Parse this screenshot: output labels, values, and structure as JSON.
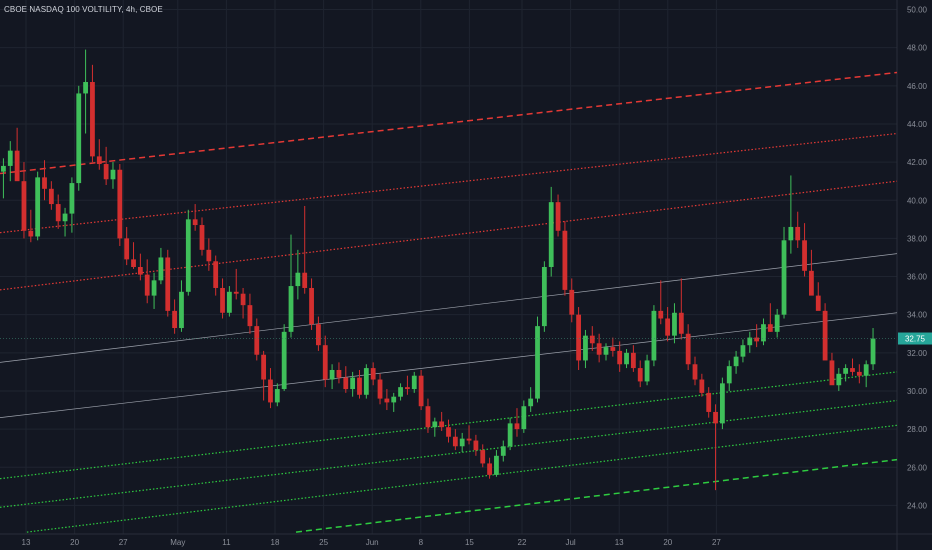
{
  "title": "CBOE NASDAQ 100 VOLTILITY, 4h, CBOE",
  "chart_data": {
    "type": "candlestick",
    "title": "CBOE NASDAQ 100 VOLTILITY, 4h, CBOE",
    "x_ticks": [
      "13",
      "20",
      "27",
      "May",
      "11",
      "18",
      "25",
      "Jun",
      "8",
      "15",
      "22",
      "Jul",
      "13",
      "20",
      "27"
    ],
    "y_ticks": [
      "24.00",
      "26.00",
      "28.00",
      "30.00",
      "32.00",
      "34.00",
      "36.00",
      "38.00",
      "40.00",
      "42.00",
      "44.00",
      "46.00",
      "48.00",
      "50.00"
    ],
    "ylim": [
      22.5,
      50.5
    ],
    "last_price": "32.75",
    "colors": {
      "up": "#26a69a",
      "green_candle": "#3fbf5a",
      "down": "#d32f2f",
      "red_line": "#e53935",
      "green_line": "#2ecc40",
      "gray_line": "#9ea3ad"
    },
    "candles_ohlc": [
      [
        41.5,
        42.2,
        40.1,
        41.8
      ],
      [
        41.8,
        43.1,
        41.0,
        42.6
      ],
      [
        42.6,
        43.8,
        41.5,
        41.0
      ],
      [
        41.0,
        42.0,
        38.0,
        38.4
      ],
      [
        38.4,
        39.5,
        37.8,
        38.1
      ],
      [
        38.1,
        41.5,
        37.9,
        41.2
      ],
      [
        41.2,
        42.1,
        40.0,
        40.6
      ],
      [
        40.6,
        41.0,
        39.5,
        39.8
      ],
      [
        39.8,
        40.3,
        38.5,
        38.9
      ],
      [
        38.9,
        39.6,
        38.1,
        39.3
      ],
      [
        39.3,
        41.2,
        38.3,
        40.9
      ],
      [
        40.9,
        46.0,
        40.5,
        45.6
      ],
      [
        45.6,
        47.9,
        43.5,
        46.2
      ],
      [
        46.2,
        47.1,
        42.0,
        42.3
      ],
      [
        42.3,
        43.2,
        41.6,
        41.9
      ],
      [
        41.9,
        42.8,
        40.8,
        41.1
      ],
      [
        41.1,
        42.0,
        40.6,
        41.6
      ],
      [
        41.6,
        41.9,
        37.6,
        38.0
      ],
      [
        38.0,
        38.6,
        36.6,
        36.9
      ],
      [
        36.9,
        37.8,
        36.4,
        36.5
      ],
      [
        36.5,
        37.2,
        35.8,
        36.1
      ],
      [
        36.1,
        36.9,
        34.6,
        35.0
      ],
      [
        35.0,
        36.2,
        34.3,
        35.8
      ],
      [
        35.8,
        37.5,
        35.6,
        37.0
      ],
      [
        37.0,
        37.4,
        33.9,
        34.2
      ],
      [
        34.2,
        34.8,
        33.0,
        33.3
      ],
      [
        33.3,
        35.8,
        33.1,
        35.2
      ],
      [
        35.2,
        39.5,
        35.0,
        39.0
      ],
      [
        39.0,
        39.8,
        38.4,
        38.7
      ],
      [
        38.7,
        39.1,
        37.1,
        37.4
      ],
      [
        37.4,
        38.0,
        36.3,
        36.8
      ],
      [
        36.8,
        37.1,
        35.0,
        35.4
      ],
      [
        35.4,
        35.9,
        33.8,
        34.1
      ],
      [
        34.1,
        35.5,
        33.9,
        35.2
      ],
      [
        35.2,
        36.4,
        34.8,
        35.1
      ],
      [
        35.1,
        35.4,
        33.8,
        34.5
      ],
      [
        34.5,
        35.1,
        33.0,
        33.4
      ],
      [
        33.4,
        33.8,
        31.6,
        31.9
      ],
      [
        31.9,
        32.1,
        29.5,
        30.6
      ],
      [
        30.6,
        31.2,
        29.1,
        29.4
      ],
      [
        29.4,
        30.4,
        29.2,
        30.1
      ],
      [
        30.1,
        33.5,
        30.0,
        33.1
      ],
      [
        33.1,
        38.2,
        32.8,
        35.5
      ],
      [
        35.5,
        37.4,
        34.8,
        36.2
      ],
      [
        36.2,
        39.7,
        35.1,
        35.4
      ],
      [
        35.4,
        35.9,
        33.2,
        33.5
      ],
      [
        33.5,
        33.9,
        32.1,
        32.4
      ],
      [
        32.4,
        32.9,
        30.2,
        30.6
      ],
      [
        30.6,
        31.4,
        30.1,
        31.1
      ],
      [
        31.1,
        31.5,
        30.4,
        30.7
      ],
      [
        30.7,
        31.3,
        29.9,
        30.1
      ],
      [
        30.1,
        31.0,
        29.7,
        30.7
      ],
      [
        30.7,
        31.1,
        29.6,
        29.8
      ],
      [
        29.8,
        31.4,
        29.6,
        31.2
      ],
      [
        31.2,
        31.5,
        30.3,
        30.6
      ],
      [
        30.6,
        30.9,
        29.3,
        29.6
      ],
      [
        29.6,
        30.1,
        29.0,
        29.4
      ],
      [
        29.4,
        29.9,
        28.9,
        29.7
      ],
      [
        29.7,
        30.4,
        29.5,
        30.2
      ],
      [
        30.2,
        30.8,
        29.8,
        30.1
      ],
      [
        30.1,
        31.0,
        29.9,
        30.8
      ],
      [
        30.8,
        31.1,
        29.0,
        29.2
      ],
      [
        29.2,
        29.6,
        27.8,
        28.1
      ],
      [
        28.1,
        28.6,
        27.6,
        28.4
      ],
      [
        28.4,
        28.9,
        27.9,
        28.1
      ],
      [
        28.1,
        28.5,
        27.3,
        27.6
      ],
      [
        27.6,
        28.0,
        26.9,
        27.1
      ],
      [
        27.1,
        27.8,
        26.8,
        27.5
      ],
      [
        27.5,
        28.2,
        27.2,
        27.4
      ],
      [
        27.4,
        27.7,
        26.6,
        26.9
      ],
      [
        26.9,
        27.2,
        26.0,
        26.2
      ],
      [
        26.2,
        26.5,
        25.4,
        25.6
      ],
      [
        25.6,
        26.9,
        25.5,
        26.6
      ],
      [
        26.6,
        27.4,
        26.3,
        27.1
      ],
      [
        27.1,
        28.6,
        26.9,
        28.3
      ],
      [
        28.3,
        29.1,
        27.6,
        28.0
      ],
      [
        28.0,
        29.5,
        27.8,
        29.2
      ],
      [
        29.2,
        30.2,
        28.9,
        29.6
      ],
      [
        29.6,
        33.9,
        29.4,
        33.4
      ],
      [
        33.4,
        36.8,
        33.1,
        36.5
      ],
      [
        36.5,
        40.7,
        36.0,
        39.9
      ],
      [
        39.9,
        40.3,
        38.1,
        38.4
      ],
      [
        38.4,
        38.9,
        35.0,
        35.3
      ],
      [
        35.3,
        35.9,
        33.6,
        34.0
      ],
      [
        34.0,
        34.4,
        31.1,
        31.6
      ],
      [
        31.6,
        33.2,
        31.2,
        32.9
      ],
      [
        32.9,
        33.4,
        32.1,
        32.5
      ],
      [
        32.5,
        33.0,
        31.5,
        31.9
      ],
      [
        31.9,
        32.5,
        31.6,
        32.3
      ],
      [
        32.3,
        32.8,
        31.8,
        32.1
      ],
      [
        32.1,
        32.6,
        31.0,
        31.4
      ],
      [
        31.4,
        32.2,
        31.2,
        32.0
      ],
      [
        32.0,
        32.4,
        31.0,
        31.2
      ],
      [
        31.2,
        31.6,
        30.2,
        30.5
      ],
      [
        30.5,
        31.9,
        30.3,
        31.6
      ],
      [
        31.6,
        34.5,
        31.3,
        34.2
      ],
      [
        34.2,
        35.8,
        33.5,
        33.8
      ],
      [
        33.8,
        34.4,
        32.6,
        32.9
      ],
      [
        32.9,
        34.6,
        32.5,
        34.1
      ],
      [
        34.1,
        35.9,
        32.7,
        33.0
      ],
      [
        33.0,
        33.5,
        31.1,
        31.4
      ],
      [
        31.4,
        31.8,
        30.3,
        30.6
      ],
      [
        30.6,
        30.9,
        29.7,
        29.9
      ],
      [
        29.9,
        30.2,
        28.6,
        28.9
      ],
      [
        28.9,
        29.3,
        24.8,
        28.3
      ],
      [
        28.3,
        30.7,
        28.0,
        30.4
      ],
      [
        30.4,
        31.6,
        30.0,
        31.3
      ],
      [
        31.3,
        32.1,
        30.9,
        31.8
      ],
      [
        31.8,
        32.7,
        31.5,
        32.4
      ],
      [
        32.4,
        33.1,
        32.0,
        32.8
      ],
      [
        32.8,
        33.5,
        32.3,
        32.6
      ],
      [
        32.6,
        33.8,
        32.4,
        33.5
      ],
      [
        33.5,
        34.6,
        33.1,
        33.1
      ],
      [
        33.1,
        34.3,
        32.8,
        34.0
      ],
      [
        34.0,
        38.6,
        33.8,
        37.9
      ],
      [
        37.9,
        41.3,
        37.2,
        38.6
      ],
      [
        38.6,
        39.4,
        37.5,
        37.9
      ],
      [
        37.9,
        38.8,
        36.0,
        36.3
      ],
      [
        36.3,
        37.4,
        35.5,
        35.0
      ],
      [
        35.0,
        35.7,
        34.6,
        34.2
      ],
      [
        34.2,
        34.6,
        32.2,
        31.6
      ],
      [
        31.6,
        32.0,
        30.6,
        30.3
      ],
      [
        30.3,
        31.2,
        30.0,
        30.9
      ],
      [
        30.9,
        31.4,
        30.5,
        31.2
      ],
      [
        31.2,
        31.7,
        30.8,
        31.0
      ],
      [
        31.0,
        31.4,
        30.4,
        30.8
      ],
      [
        30.8,
        31.6,
        30.2,
        31.4
      ],
      [
        31.4,
        33.3,
        31.1,
        32.75
      ]
    ],
    "channel_lines": [
      {
        "style": "dashed",
        "color": "red",
        "start": [
          0,
          41.4
        ],
        "end": [
          1,
          46.7
        ]
      },
      {
        "style": "dotted",
        "color": "red",
        "start": [
          0,
          38.3
        ],
        "end": [
          1,
          43.5
        ]
      },
      {
        "style": "dotted",
        "color": "red",
        "start": [
          0,
          35.3
        ],
        "end": [
          1,
          41.0
        ]
      },
      {
        "style": "solid",
        "color": "gray",
        "start": [
          0,
          31.5
        ],
        "end": [
          1,
          37.2
        ]
      },
      {
        "style": "solid",
        "color": "gray",
        "start": [
          0,
          28.6
        ],
        "end": [
          1,
          34.1
        ]
      },
      {
        "style": "dotted",
        "color": "green",
        "start": [
          0,
          25.4
        ],
        "end": [
          1,
          31.0
        ]
      },
      {
        "style": "dotted",
        "color": "green",
        "start": [
          0,
          23.9
        ],
        "end": [
          1,
          29.5
        ]
      },
      {
        "style": "dotted",
        "color": "green",
        "start": [
          0.03,
          22.6
        ],
        "end": [
          1,
          28.2
        ]
      },
      {
        "style": "dashed",
        "color": "green",
        "start": [
          0.33,
          22.6
        ],
        "end": [
          1,
          26.4
        ]
      }
    ]
  }
}
